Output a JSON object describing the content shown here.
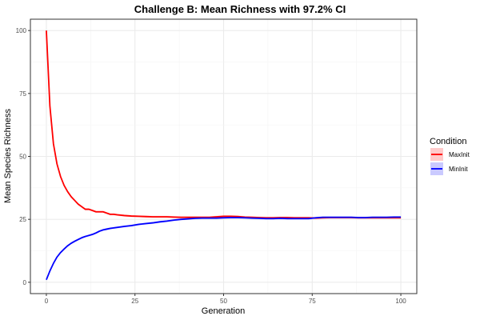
{
  "chart_data": {
    "type": "line",
    "title": "Challenge B: Mean Richness with 97.2% CI",
    "xlabel": "Generation",
    "ylabel": "Mean Species Richness",
    "xlim": [
      -4.5,
      104.5
    ],
    "ylim": [
      -4.5,
      104.5
    ],
    "x_ticks": [
      0,
      25,
      50,
      75,
      100
    ],
    "y_ticks": [
      0,
      25,
      50,
      75,
      100
    ],
    "x_tick_labels": [
      "0",
      "25",
      "50",
      "75",
      "100"
    ],
    "y_tick_labels": [
      "0",
      "25",
      "50",
      "75",
      "100"
    ],
    "grid": true,
    "legend_position": "right",
    "legend_title": "Condition",
    "series": [
      {
        "name": "MaxInit",
        "color": "#ff0000",
        "ci_color": "#ffb3b3",
        "x": [
          0,
          1,
          2,
          3,
          4,
          5,
          6,
          7,
          8,
          9,
          10,
          11,
          12,
          13,
          14,
          15,
          16,
          17,
          18,
          19,
          20,
          22,
          24,
          26,
          28,
          30,
          32,
          34,
          36,
          38,
          40,
          42,
          44,
          46,
          48,
          50,
          52,
          54,
          56,
          58,
          60,
          62,
          64,
          66,
          68,
          70,
          72,
          74,
          76,
          78,
          80,
          82,
          84,
          86,
          88,
          90,
          92,
          94,
          96,
          98,
          100
        ],
        "values": [
          100,
          70,
          55,
          47,
          42,
          38.5,
          36,
          34,
          32.5,
          31,
          30,
          29,
          29,
          28.5,
          28,
          28,
          28,
          27.5,
          27,
          27,
          26.8,
          26.5,
          26.3,
          26.2,
          26.1,
          26,
          26,
          26,
          25.9,
          25.8,
          25.8,
          25.8,
          25.8,
          25.8,
          26,
          26.2,
          26.2,
          26.1,
          25.9,
          25.8,
          25.7,
          25.6,
          25.6,
          25.7,
          25.7,
          25.6,
          25.6,
          25.6,
          25.5,
          25.6,
          25.7,
          25.7,
          25.7,
          25.7,
          25.6,
          25.6,
          25.6,
          25.6,
          25.6,
          25.6,
          25.6
        ]
      },
      {
        "name": "MinInit",
        "color": "#0000ff",
        "ci_color": "#b3b3ff",
        "x": [
          0,
          1,
          2,
          3,
          4,
          5,
          6,
          7,
          8,
          9,
          10,
          11,
          12,
          13,
          14,
          15,
          16,
          17,
          18,
          19,
          20,
          22,
          24,
          26,
          28,
          30,
          32,
          34,
          36,
          38,
          40,
          42,
          44,
          46,
          48,
          50,
          52,
          54,
          56,
          58,
          60,
          62,
          64,
          66,
          68,
          70,
          72,
          74,
          76,
          78,
          80,
          82,
          84,
          86,
          88,
          90,
          92,
          94,
          96,
          98,
          100
        ],
        "values": [
          1,
          4.5,
          7.5,
          10,
          11.8,
          13.2,
          14.5,
          15.5,
          16.3,
          17,
          17.7,
          18.2,
          18.6,
          19,
          19.6,
          20.3,
          20.8,
          21.1,
          21.4,
          21.6,
          21.8,
          22.2,
          22.5,
          23,
          23.3,
          23.6,
          24,
          24.3,
          24.7,
          25,
          25.2,
          25.4,
          25.5,
          25.5,
          25.5,
          25.6,
          25.7,
          25.7,
          25.6,
          25.5,
          25.4,
          25.3,
          25.3,
          25.4,
          25.3,
          25.3,
          25.3,
          25.3,
          25.6,
          25.8,
          25.8,
          25.8,
          25.8,
          25.8,
          25.7,
          25.7,
          25.8,
          25.8,
          25.8,
          25.9,
          25.9
        ]
      }
    ]
  }
}
